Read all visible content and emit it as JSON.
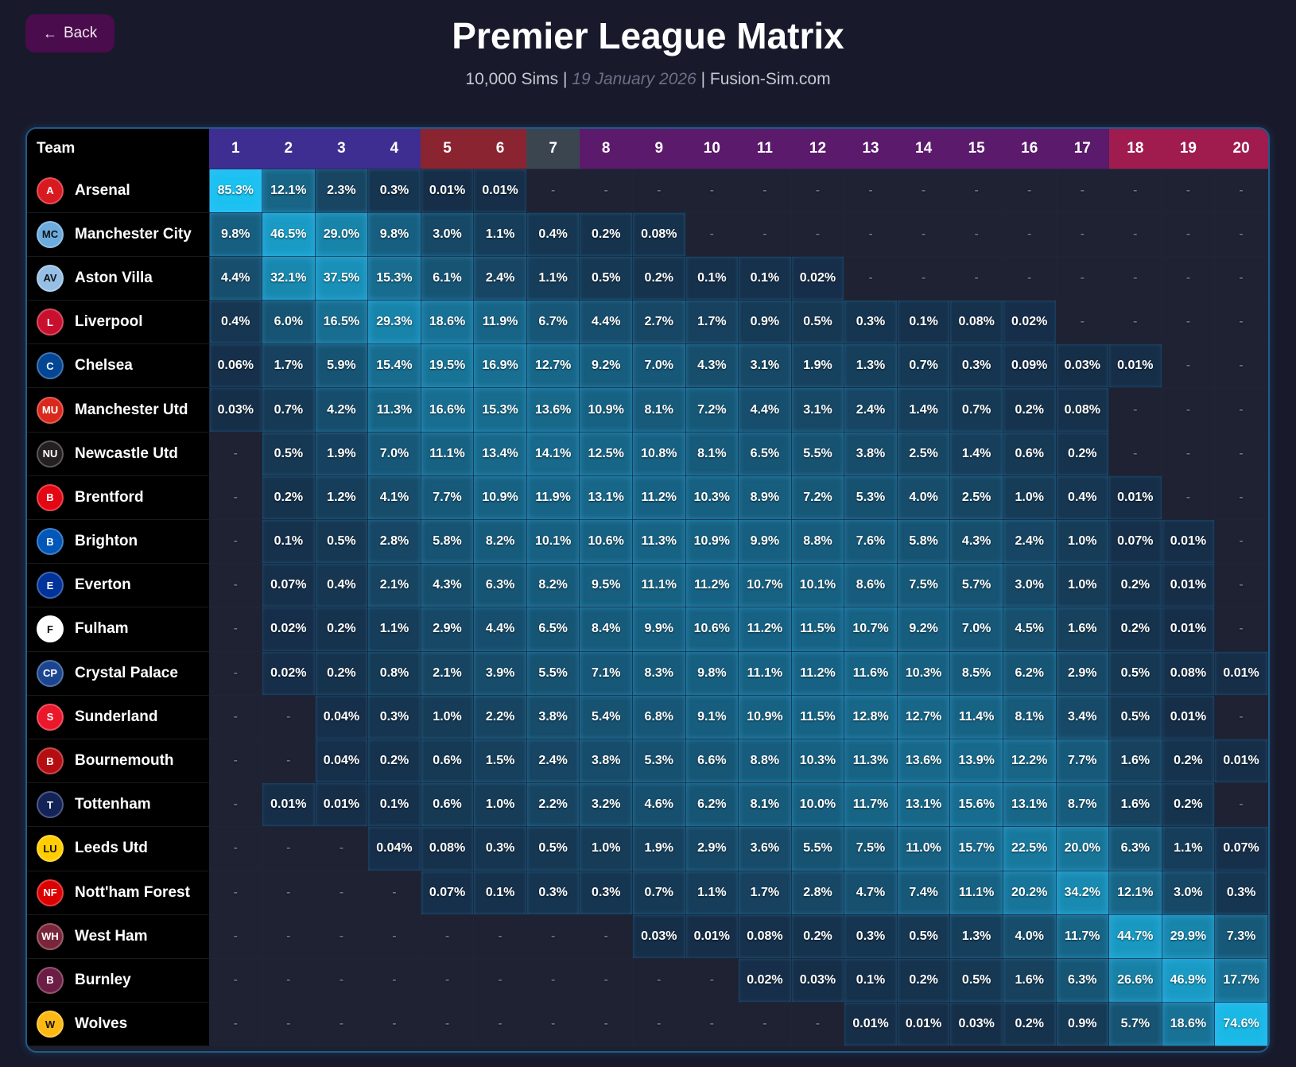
{
  "back_button": {
    "label": "Back",
    "icon": "arrow-left-icon"
  },
  "title": "Premier League Matrix",
  "subtitle": {
    "sims": "10,000 Sims",
    "sep1": " | ",
    "date": "19 January 2026",
    "sep2": " | ",
    "site": "Fusion-Sim.com"
  },
  "table": {
    "team_header": "Team",
    "positions": [
      "1",
      "2",
      "3",
      "4",
      "5",
      "6",
      "7",
      "8",
      "9",
      "10",
      "11",
      "12",
      "13",
      "14",
      "15",
      "16",
      "17",
      "18",
      "19",
      "20"
    ],
    "header_colors": [
      "#3f2e91",
      "#3f2e91",
      "#3f2e91",
      "#3f2e91",
      "#8a2431",
      "#8a2431",
      "#3b4550",
      "#5b1a6b",
      "#5b1a6b",
      "#5b1a6b",
      "#5b1a6b",
      "#5b1a6b",
      "#5b1a6b",
      "#5b1a6b",
      "#5b1a6b",
      "#5b1a6b",
      "#5b1a6b",
      "#a01c4e",
      "#a01c4e",
      "#a01c4e"
    ],
    "rows": [
      {
        "team": "Arsenal",
        "crest_color": "#d81920",
        "cells": [
          "85.3%",
          "12.1%",
          "2.3%",
          "0.3%",
          "0.01%",
          "0.01%",
          "-",
          "-",
          "-",
          "-",
          "-",
          "-",
          "-",
          "-",
          "-",
          "-",
          "-",
          "-",
          "-",
          "-"
        ]
      },
      {
        "team": "Manchester City",
        "crest_color": "#6cabdd",
        "cells": [
          "9.8%",
          "46.5%",
          "29.0%",
          "9.8%",
          "3.0%",
          "1.1%",
          "0.4%",
          "0.2%",
          "0.08%",
          "-",
          "-",
          "-",
          "-",
          "-",
          "-",
          "-",
          "-",
          "-",
          "-",
          "-"
        ]
      },
      {
        "team": "Aston Villa",
        "crest_color": "#95bfe5",
        "cells": [
          "4.4%",
          "32.1%",
          "37.5%",
          "15.3%",
          "6.1%",
          "2.4%",
          "1.1%",
          "0.5%",
          "0.2%",
          "0.1%",
          "0.1%",
          "0.02%",
          "-",
          "-",
          "-",
          "-",
          "-",
          "-",
          "-",
          "-"
        ]
      },
      {
        "team": "Liverpool",
        "crest_color": "#c8102e",
        "cells": [
          "0.4%",
          "6.0%",
          "16.5%",
          "29.3%",
          "18.6%",
          "11.9%",
          "6.7%",
          "4.4%",
          "2.7%",
          "1.7%",
          "0.9%",
          "0.5%",
          "0.3%",
          "0.1%",
          "0.08%",
          "0.02%",
          "-",
          "-",
          "-",
          "-"
        ]
      },
      {
        "team": "Chelsea",
        "crest_color": "#034694",
        "cells": [
          "0.06%",
          "1.7%",
          "5.9%",
          "15.4%",
          "19.5%",
          "16.9%",
          "12.7%",
          "9.2%",
          "7.0%",
          "4.3%",
          "3.1%",
          "1.9%",
          "1.3%",
          "0.7%",
          "0.3%",
          "0.09%",
          "0.03%",
          "0.01%",
          "-",
          "-"
        ]
      },
      {
        "team": "Manchester Utd",
        "crest_color": "#da291c",
        "cells": [
          "0.03%",
          "0.7%",
          "4.2%",
          "11.3%",
          "16.6%",
          "15.3%",
          "13.6%",
          "10.9%",
          "8.1%",
          "7.2%",
          "4.4%",
          "3.1%",
          "2.4%",
          "1.4%",
          "0.7%",
          "0.2%",
          "0.08%",
          "-",
          "-",
          "-"
        ]
      },
      {
        "team": "Newcastle Utd",
        "crest_color": "#241f20",
        "cells": [
          "-",
          "0.5%",
          "1.9%",
          "7.0%",
          "11.1%",
          "13.4%",
          "14.1%",
          "12.5%",
          "10.8%",
          "8.1%",
          "6.5%",
          "5.5%",
          "3.8%",
          "2.5%",
          "1.4%",
          "0.6%",
          "0.2%",
          "-",
          "-",
          "-"
        ]
      },
      {
        "team": "Brentford",
        "crest_color": "#e30613",
        "cells": [
          "-",
          "0.2%",
          "1.2%",
          "4.1%",
          "7.7%",
          "10.9%",
          "11.9%",
          "13.1%",
          "11.2%",
          "10.3%",
          "8.9%",
          "7.2%",
          "5.3%",
          "4.0%",
          "2.5%",
          "1.0%",
          "0.4%",
          "0.01%",
          "-",
          "-"
        ]
      },
      {
        "team": "Brighton",
        "crest_color": "#0057b8",
        "cells": [
          "-",
          "0.1%",
          "0.5%",
          "2.8%",
          "5.8%",
          "8.2%",
          "10.1%",
          "10.6%",
          "11.3%",
          "10.9%",
          "9.9%",
          "8.8%",
          "7.6%",
          "5.8%",
          "4.3%",
          "2.4%",
          "1.0%",
          "0.07%",
          "0.01%",
          "-"
        ]
      },
      {
        "team": "Everton",
        "crest_color": "#003399",
        "cells": [
          "-",
          "0.07%",
          "0.4%",
          "2.1%",
          "4.3%",
          "6.3%",
          "8.2%",
          "9.5%",
          "11.1%",
          "11.2%",
          "10.7%",
          "10.1%",
          "8.6%",
          "7.5%",
          "5.7%",
          "3.0%",
          "1.0%",
          "0.2%",
          "0.01%",
          "-"
        ]
      },
      {
        "team": "Fulham",
        "crest_color": "#ffffff",
        "cells": [
          "-",
          "0.02%",
          "0.2%",
          "1.1%",
          "2.9%",
          "4.4%",
          "6.5%",
          "8.4%",
          "9.9%",
          "10.6%",
          "11.2%",
          "11.5%",
          "10.7%",
          "9.2%",
          "7.0%",
          "4.5%",
          "1.6%",
          "0.2%",
          "0.01%",
          "-"
        ]
      },
      {
        "team": "Crystal Palace",
        "crest_color": "#1b458f",
        "cells": [
          "-",
          "0.02%",
          "0.2%",
          "0.8%",
          "2.1%",
          "3.9%",
          "5.5%",
          "7.1%",
          "8.3%",
          "9.8%",
          "11.1%",
          "11.2%",
          "11.6%",
          "10.3%",
          "8.5%",
          "6.2%",
          "2.9%",
          "0.5%",
          "0.08%",
          "0.01%"
        ]
      },
      {
        "team": "Sunderland",
        "crest_color": "#eb172b",
        "cells": [
          "-",
          "-",
          "0.04%",
          "0.3%",
          "1.0%",
          "2.2%",
          "3.8%",
          "5.4%",
          "6.8%",
          "9.1%",
          "10.9%",
          "11.5%",
          "12.8%",
          "12.7%",
          "11.4%",
          "8.1%",
          "3.4%",
          "0.5%",
          "0.01%",
          "-"
        ]
      },
      {
        "team": "Bournemouth",
        "crest_color": "#b50e12",
        "cells": [
          "-",
          "-",
          "0.04%",
          "0.2%",
          "0.6%",
          "1.5%",
          "2.4%",
          "3.8%",
          "5.3%",
          "6.6%",
          "8.8%",
          "10.3%",
          "11.3%",
          "13.6%",
          "13.9%",
          "12.2%",
          "7.7%",
          "1.6%",
          "0.2%",
          "0.01%"
        ]
      },
      {
        "team": "Tottenham",
        "crest_color": "#132257",
        "cells": [
          "-",
          "0.01%",
          "0.01%",
          "0.1%",
          "0.6%",
          "1.0%",
          "2.2%",
          "3.2%",
          "4.6%",
          "6.2%",
          "8.1%",
          "10.0%",
          "11.7%",
          "13.1%",
          "15.6%",
          "13.1%",
          "8.7%",
          "1.6%",
          "0.2%",
          "-"
        ]
      },
      {
        "team": "Leeds Utd",
        "crest_color": "#ffcd00",
        "cells": [
          "-",
          "-",
          "-",
          "0.04%",
          "0.08%",
          "0.3%",
          "0.5%",
          "1.0%",
          "1.9%",
          "2.9%",
          "3.6%",
          "5.5%",
          "7.5%",
          "11.0%",
          "15.7%",
          "22.5%",
          "20.0%",
          "6.3%",
          "1.1%",
          "0.07%"
        ]
      },
      {
        "team": "Nott'ham Forest",
        "crest_color": "#dd0000",
        "cells": [
          "-",
          "-",
          "-",
          "-",
          "0.07%",
          "0.1%",
          "0.3%",
          "0.3%",
          "0.7%",
          "1.1%",
          "1.7%",
          "2.8%",
          "4.7%",
          "7.4%",
          "11.1%",
          "20.2%",
          "34.2%",
          "12.1%",
          "3.0%",
          "0.3%"
        ]
      },
      {
        "team": "West Ham",
        "crest_color": "#7a263a",
        "cells": [
          "-",
          "-",
          "-",
          "-",
          "-",
          "-",
          "-",
          "-",
          "0.03%",
          "0.01%",
          "0.08%",
          "0.2%",
          "0.3%",
          "0.5%",
          "1.3%",
          "4.0%",
          "11.7%",
          "44.7%",
          "29.9%",
          "7.3%"
        ]
      },
      {
        "team": "Burnley",
        "crest_color": "#6c1d45",
        "cells": [
          "-",
          "-",
          "-",
          "-",
          "-",
          "-",
          "-",
          "-",
          "-",
          "-",
          "0.02%",
          "0.03%",
          "0.1%",
          "0.2%",
          "0.5%",
          "1.6%",
          "6.3%",
          "26.6%",
          "46.9%",
          "17.7%"
        ]
      },
      {
        "team": "Wolves",
        "crest_color": "#fdb913",
        "cells": [
          "-",
          "-",
          "-",
          "-",
          "-",
          "-",
          "-",
          "-",
          "-",
          "-",
          "-",
          "-",
          "0.01%",
          "0.01%",
          "0.03%",
          "0.2%",
          "0.9%",
          "5.7%",
          "18.6%",
          "74.6%"
        ]
      }
    ]
  }
}
